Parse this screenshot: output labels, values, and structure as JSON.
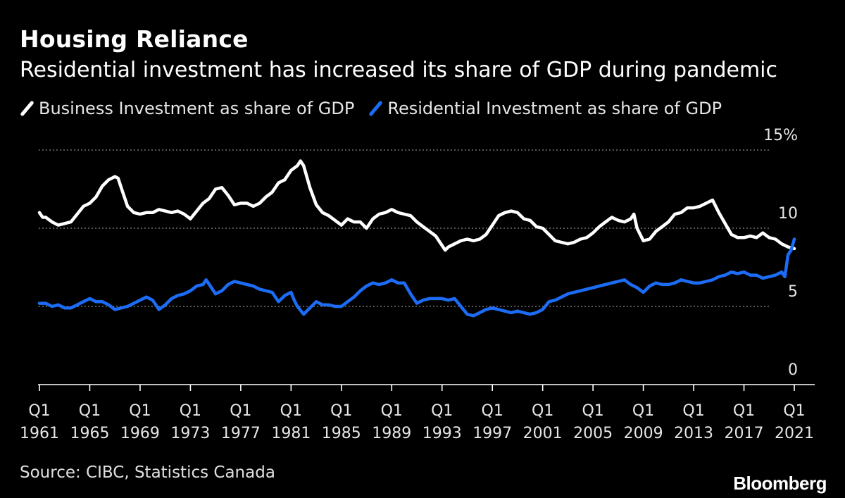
{
  "title": "Housing Reliance",
  "subtitle": "Residential investment has increased its share of GDP during pandemic",
  "source": "Source: CIBC, Statistics Canada",
  "brand": "Bloomberg",
  "chart_data": {
    "type": "line",
    "title": "Housing Reliance",
    "subtitle": "Residential investment has increased its share of GDP during pandemic",
    "xlabel": "",
    "ylabel": "",
    "xlim": [
      1961,
      2021.5
    ],
    "ylim": [
      0,
      15
    ],
    "grid": true,
    "legend_position": "top-left",
    "y_ticks": [
      {
        "value": 0,
        "label": "0"
      },
      {
        "value": 5,
        "label": "5"
      },
      {
        "value": 10,
        "label": "10"
      },
      {
        "value": 15,
        "label": "15%"
      }
    ],
    "x_ticks": [
      {
        "value": 1961,
        "line1": "Q1",
        "line2": "1961"
      },
      {
        "value": 1965,
        "line1": "Q1",
        "line2": "1965"
      },
      {
        "value": 1969,
        "line1": "Q1",
        "line2": "1969"
      },
      {
        "value": 1973,
        "line1": "Q1",
        "line2": "1973"
      },
      {
        "value": 1977,
        "line1": "Q1",
        "line2": "1977"
      },
      {
        "value": 1981,
        "line1": "Q1",
        "line2": "1981"
      },
      {
        "value": 1985,
        "line1": "Q1",
        "line2": "1985"
      },
      {
        "value": 1989,
        "line1": "Q1",
        "line2": "1989"
      },
      {
        "value": 1993,
        "line1": "Q1",
        "line2": "1993"
      },
      {
        "value": 1997,
        "line1": "Q1",
        "line2": "1997"
      },
      {
        "value": 2001,
        "line1": "Q1",
        "line2": "2001"
      },
      {
        "value": 2005,
        "line1": "Q1",
        "line2": "2005"
      },
      {
        "value": 2009,
        "line1": "Q1",
        "line2": "2009"
      },
      {
        "value": 2013,
        "line1": "Q1",
        "line2": "2013"
      },
      {
        "value": 2017,
        "line1": "Q1",
        "line2": "2017"
      },
      {
        "value": 2021,
        "line1": "Q1",
        "line2": "2021"
      }
    ],
    "series": [
      {
        "name": "Business Investment as share of GDP",
        "color": "#ffffff",
        "points": [
          [
            1961.0,
            11.0
          ],
          [
            1961.25,
            10.7
          ],
          [
            1961.5,
            10.7
          ],
          [
            1962.0,
            10.4
          ],
          [
            1962.5,
            10.2
          ],
          [
            1963.0,
            10.3
          ],
          [
            1963.5,
            10.4
          ],
          [
            1964.0,
            10.9
          ],
          [
            1964.5,
            11.4
          ],
          [
            1965.0,
            11.6
          ],
          [
            1965.5,
            12.0
          ],
          [
            1966.0,
            12.7
          ],
          [
            1966.5,
            13.1
          ],
          [
            1967.0,
            13.3
          ],
          [
            1967.25,
            13.2
          ],
          [
            1967.5,
            12.6
          ],
          [
            1968.0,
            11.4
          ],
          [
            1968.5,
            11.0
          ],
          [
            1969.0,
            10.9
          ],
          [
            1969.5,
            11.0
          ],
          [
            1970.0,
            11.0
          ],
          [
            1970.5,
            11.2
          ],
          [
            1971.0,
            11.1
          ],
          [
            1971.5,
            11.0
          ],
          [
            1972.0,
            11.1
          ],
          [
            1972.5,
            10.9
          ],
          [
            1973.0,
            10.6
          ],
          [
            1973.5,
            11.1
          ],
          [
            1974.0,
            11.6
          ],
          [
            1974.5,
            11.9
          ],
          [
            1975.0,
            12.5
          ],
          [
            1975.5,
            12.6
          ],
          [
            1976.0,
            12.1
          ],
          [
            1976.5,
            11.5
          ],
          [
            1977.0,
            11.6
          ],
          [
            1977.5,
            11.6
          ],
          [
            1978.0,
            11.4
          ],
          [
            1978.5,
            11.6
          ],
          [
            1979.0,
            12.0
          ],
          [
            1979.5,
            12.3
          ],
          [
            1980.0,
            12.9
          ],
          [
            1980.5,
            13.1
          ],
          [
            1981.0,
            13.7
          ],
          [
            1981.5,
            14.0
          ],
          [
            1981.75,
            14.3
          ],
          [
            1982.0,
            14.0
          ],
          [
            1982.5,
            12.6
          ],
          [
            1983.0,
            11.5
          ],
          [
            1983.5,
            11.0
          ],
          [
            1984.0,
            10.8
          ],
          [
            1984.5,
            10.5
          ],
          [
            1985.0,
            10.2
          ],
          [
            1985.5,
            10.6
          ],
          [
            1986.0,
            10.4
          ],
          [
            1986.5,
            10.4
          ],
          [
            1987.0,
            10.0
          ],
          [
            1987.5,
            10.6
          ],
          [
            1988.0,
            10.9
          ],
          [
            1988.5,
            11.0
          ],
          [
            1989.0,
            11.2
          ],
          [
            1989.5,
            11.0
          ],
          [
            1990.0,
            10.9
          ],
          [
            1990.5,
            10.8
          ],
          [
            1991.0,
            10.4
          ],
          [
            1991.5,
            10.1
          ],
          [
            1992.0,
            9.8
          ],
          [
            1992.5,
            9.5
          ],
          [
            1993.0,
            8.9
          ],
          [
            1993.25,
            8.6
          ],
          [
            1993.5,
            8.8
          ],
          [
            1994.0,
            9.0
          ],
          [
            1994.5,
            9.2
          ],
          [
            1995.0,
            9.3
          ],
          [
            1995.5,
            9.2
          ],
          [
            1996.0,
            9.3
          ],
          [
            1996.5,
            9.6
          ],
          [
            1997.0,
            10.2
          ],
          [
            1997.5,
            10.8
          ],
          [
            1998.0,
            11.0
          ],
          [
            1998.5,
            11.1
          ],
          [
            1999.0,
            11.0
          ],
          [
            1999.5,
            10.6
          ],
          [
            2000.0,
            10.5
          ],
          [
            2000.5,
            10.1
          ],
          [
            2001.0,
            10.0
          ],
          [
            2001.5,
            9.6
          ],
          [
            2002.0,
            9.2
          ],
          [
            2002.5,
            9.1
          ],
          [
            2003.0,
            9.0
          ],
          [
            2003.5,
            9.1
          ],
          [
            2004.0,
            9.3
          ],
          [
            2004.5,
            9.4
          ],
          [
            2005.0,
            9.7
          ],
          [
            2005.5,
            10.1
          ],
          [
            2006.0,
            10.4
          ],
          [
            2006.5,
            10.7
          ],
          [
            2007.0,
            10.5
          ],
          [
            2007.5,
            10.4
          ],
          [
            2008.0,
            10.6
          ],
          [
            2008.25,
            10.9
          ],
          [
            2008.5,
            10.0
          ],
          [
            2009.0,
            9.2
          ],
          [
            2009.5,
            9.3
          ],
          [
            2010.0,
            9.8
          ],
          [
            2010.5,
            10.1
          ],
          [
            2011.0,
            10.4
          ],
          [
            2011.5,
            10.9
          ],
          [
            2012.0,
            11.0
          ],
          [
            2012.5,
            11.3
          ],
          [
            2013.0,
            11.3
          ],
          [
            2013.5,
            11.4
          ],
          [
            2014.0,
            11.6
          ],
          [
            2014.5,
            11.8
          ],
          [
            2015.0,
            11.0
          ],
          [
            2015.5,
            10.3
          ],
          [
            2016.0,
            9.6
          ],
          [
            2016.5,
            9.4
          ],
          [
            2017.0,
            9.4
          ],
          [
            2017.5,
            9.5
          ],
          [
            2018.0,
            9.4
          ],
          [
            2018.5,
            9.7
          ],
          [
            2019.0,
            9.4
          ],
          [
            2019.5,
            9.3
          ],
          [
            2020.0,
            9.0
          ],
          [
            2020.5,
            8.8
          ],
          [
            2021.0,
            8.7
          ]
        ]
      },
      {
        "name": "Residential Investment as share of GDP",
        "color": "#1c6cf6",
        "points": [
          [
            1961.0,
            5.2
          ],
          [
            1961.5,
            5.2
          ],
          [
            1962.0,
            5.0
          ],
          [
            1962.5,
            5.1
          ],
          [
            1963.0,
            4.9
          ],
          [
            1963.5,
            4.9
          ],
          [
            1964.0,
            5.1
          ],
          [
            1964.5,
            5.3
          ],
          [
            1965.0,
            5.5
          ],
          [
            1965.5,
            5.3
          ],
          [
            1966.0,
            5.3
          ],
          [
            1966.5,
            5.1
          ],
          [
            1967.0,
            4.8
          ],
          [
            1967.5,
            4.9
          ],
          [
            1968.0,
            5.0
          ],
          [
            1968.5,
            5.2
          ],
          [
            1969.0,
            5.4
          ],
          [
            1969.5,
            5.6
          ],
          [
            1970.0,
            5.4
          ],
          [
            1970.5,
            4.8
          ],
          [
            1971.0,
            5.1
          ],
          [
            1971.5,
            5.5
          ],
          [
            1972.0,
            5.7
          ],
          [
            1972.5,
            5.8
          ],
          [
            1973.0,
            6.0
          ],
          [
            1973.5,
            6.3
          ],
          [
            1974.0,
            6.4
          ],
          [
            1974.25,
            6.7
          ],
          [
            1974.5,
            6.4
          ],
          [
            1975.0,
            5.8
          ],
          [
            1975.5,
            6.0
          ],
          [
            1976.0,
            6.4
          ],
          [
            1976.5,
            6.6
          ],
          [
            1977.0,
            6.5
          ],
          [
            1977.5,
            6.4
          ],
          [
            1978.0,
            6.3
          ],
          [
            1978.5,
            6.1
          ],
          [
            1979.0,
            6.0
          ],
          [
            1979.5,
            5.9
          ],
          [
            1980.0,
            5.3
          ],
          [
            1980.5,
            5.7
          ],
          [
            1981.0,
            5.9
          ],
          [
            1981.25,
            5.4
          ],
          [
            1981.5,
            5.0
          ],
          [
            1982.0,
            4.5
          ],
          [
            1982.5,
            4.9
          ],
          [
            1983.0,
            5.3
          ],
          [
            1983.5,
            5.1
          ],
          [
            1984.0,
            5.1
          ],
          [
            1984.5,
            5.0
          ],
          [
            1985.0,
            5.0
          ],
          [
            1985.5,
            5.3
          ],
          [
            1986.0,
            5.6
          ],
          [
            1986.5,
            6.0
          ],
          [
            1987.0,
            6.3
          ],
          [
            1987.5,
            6.5
          ],
          [
            1988.0,
            6.4
          ],
          [
            1988.5,
            6.5
          ],
          [
            1989.0,
            6.7
          ],
          [
            1989.5,
            6.5
          ],
          [
            1990.0,
            6.5
          ],
          [
            1990.5,
            5.8
          ],
          [
            1991.0,
            5.2
          ],
          [
            1991.5,
            5.4
          ],
          [
            1992.0,
            5.5
          ],
          [
            1992.5,
            5.5
          ],
          [
            1993.0,
            5.5
          ],
          [
            1993.5,
            5.4
          ],
          [
            1994.0,
            5.5
          ],
          [
            1994.5,
            5.0
          ],
          [
            1995.0,
            4.5
          ],
          [
            1995.5,
            4.4
          ],
          [
            1996.0,
            4.6
          ],
          [
            1996.5,
            4.8
          ],
          [
            1997.0,
            4.9
          ],
          [
            1997.5,
            4.8
          ],
          [
            1998.0,
            4.7
          ],
          [
            1998.5,
            4.6
          ],
          [
            1999.0,
            4.7
          ],
          [
            1999.5,
            4.6
          ],
          [
            2000.0,
            4.5
          ],
          [
            2000.5,
            4.6
          ],
          [
            2001.0,
            4.8
          ],
          [
            2001.5,
            5.3
          ],
          [
            2002.0,
            5.4
          ],
          [
            2002.5,
            5.6
          ],
          [
            2003.0,
            5.8
          ],
          [
            2003.5,
            5.9
          ],
          [
            2004.0,
            6.0
          ],
          [
            2004.5,
            6.1
          ],
          [
            2005.0,
            6.2
          ],
          [
            2005.5,
            6.3
          ],
          [
            2006.0,
            6.4
          ],
          [
            2006.5,
            6.5
          ],
          [
            2007.0,
            6.6
          ],
          [
            2007.5,
            6.7
          ],
          [
            2008.0,
            6.4
          ],
          [
            2008.5,
            6.2
          ],
          [
            2009.0,
            5.9
          ],
          [
            2009.5,
            6.3
          ],
          [
            2010.0,
            6.5
          ],
          [
            2010.5,
            6.4
          ],
          [
            2011.0,
            6.4
          ],
          [
            2011.5,
            6.5
          ],
          [
            2012.0,
            6.7
          ],
          [
            2012.5,
            6.6
          ],
          [
            2013.0,
            6.5
          ],
          [
            2013.5,
            6.5
          ],
          [
            2014.0,
            6.6
          ],
          [
            2014.5,
            6.7
          ],
          [
            2015.0,
            6.9
          ],
          [
            2015.5,
            7.0
          ],
          [
            2016.0,
            7.2
          ],
          [
            2016.5,
            7.1
          ],
          [
            2017.0,
            7.2
          ],
          [
            2017.5,
            7.0
          ],
          [
            2018.0,
            7.0
          ],
          [
            2018.5,
            6.8
          ],
          [
            2019.0,
            6.9
          ],
          [
            2019.5,
            7.0
          ],
          [
            2020.0,
            7.2
          ],
          [
            2020.25,
            6.9
          ],
          [
            2020.5,
            8.3
          ],
          [
            2020.75,
            8.6
          ],
          [
            2021.0,
            9.3
          ]
        ]
      }
    ]
  }
}
